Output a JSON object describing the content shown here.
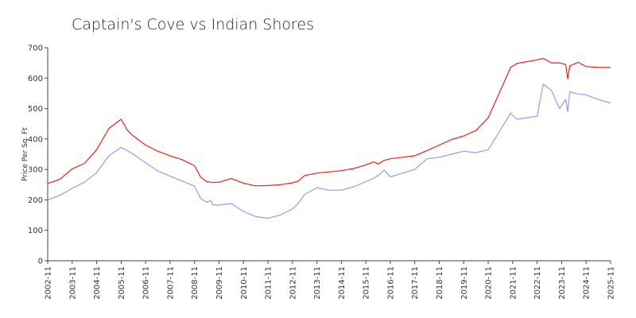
{
  "chart_data": {
    "type": "line",
    "title": "Captain's Cove vs Indian Shores",
    "y_label": "Price Per Sq. Ft",
    "x": [
      "2002-11",
      "2003-05",
      "2003-11",
      "2004-05",
      "2004-11",
      "2005-05",
      "2005-11",
      "2006-02",
      "2006-05",
      "2006-11",
      "2007-05",
      "2007-11",
      "2008-05",
      "2008-11",
      "2009-02",
      "2009-05",
      "2009-07",
      "2009-08",
      "2009-11",
      "2010-05",
      "2010-11",
      "2011-05",
      "2011-11",
      "2012-05",
      "2012-11",
      "2013-02",
      "2013-05",
      "2013-11",
      "2014-05",
      "2014-11",
      "2015-05",
      "2015-11",
      "2016-03",
      "2016-05",
      "2016-08",
      "2016-11",
      "2017-05",
      "2017-11",
      "2018-05",
      "2018-11",
      "2019-05",
      "2019-11",
      "2020-05",
      "2020-11",
      "2021-05",
      "2021-10",
      "2022-01",
      "2022-11",
      "2023-02",
      "2023-06",
      "2023-10",
      "2024-01",
      "2024-02",
      "2024-03",
      "2024-07",
      "2024-11",
      "2025-05",
      "2025-11"
    ],
    "series": [
      {
        "color": "#e8211e",
        "values": [
          254,
          268,
          302,
          320,
          365,
          435,
          465,
          430,
          410,
          380,
          360,
          345,
          332,
          312,
          275,
          260,
          258,
          257,
          258,
          270,
          255,
          246,
          247,
          250,
          256,
          262,
          280,
          288,
          292,
          296,
          303,
          315,
          325,
          318,
          330,
          335,
          340,
          345,
          362,
          380,
          398,
          410,
          428,
          470,
          560,
          635,
          648,
          660,
          665,
          650,
          650,
          645,
          598,
          640,
          652,
          638,
          635,
          635
        ]
      },
      {
        "color": "#9999f0",
        "values": [
          200,
          215,
          238,
          258,
          290,
          345,
          372,
          362,
          350,
          322,
          295,
          278,
          262,
          245,
          205,
          192,
          198,
          183,
          183,
          188,
          162,
          145,
          140,
          150,
          170,
          190,
          218,
          240,
          232,
          232,
          243,
          260,
          272,
          280,
          298,
          275,
          288,
          300,
          335,
          340,
          350,
          360,
          355,
          365,
          430,
          485,
          465,
          475,
          580,
          560,
          500,
          530,
          490,
          555,
          548,
          545,
          530,
          518
        ]
      }
    ],
    "xlim": [
      "2002-11",
      "2025-11"
    ],
    "xticks": [
      "2002-11",
      "2003-11",
      "2004-11",
      "2005-11",
      "2006-11",
      "2007-11",
      "2008-11",
      "2009-11",
      "2010-11",
      "2011-11",
      "2012-11",
      "2013-11",
      "2014-11",
      "2015-11",
      "2016-11",
      "2017-11",
      "2018-11",
      "2019-11",
      "2020-11",
      "2021-11",
      "2022-11",
      "2023-11",
      "2024-11",
      "2025-11"
    ],
    "ylim": [
      0,
      700
    ],
    "yticks": [
      0,
      100,
      200,
      300,
      400,
      500,
      600,
      700
    ]
  }
}
